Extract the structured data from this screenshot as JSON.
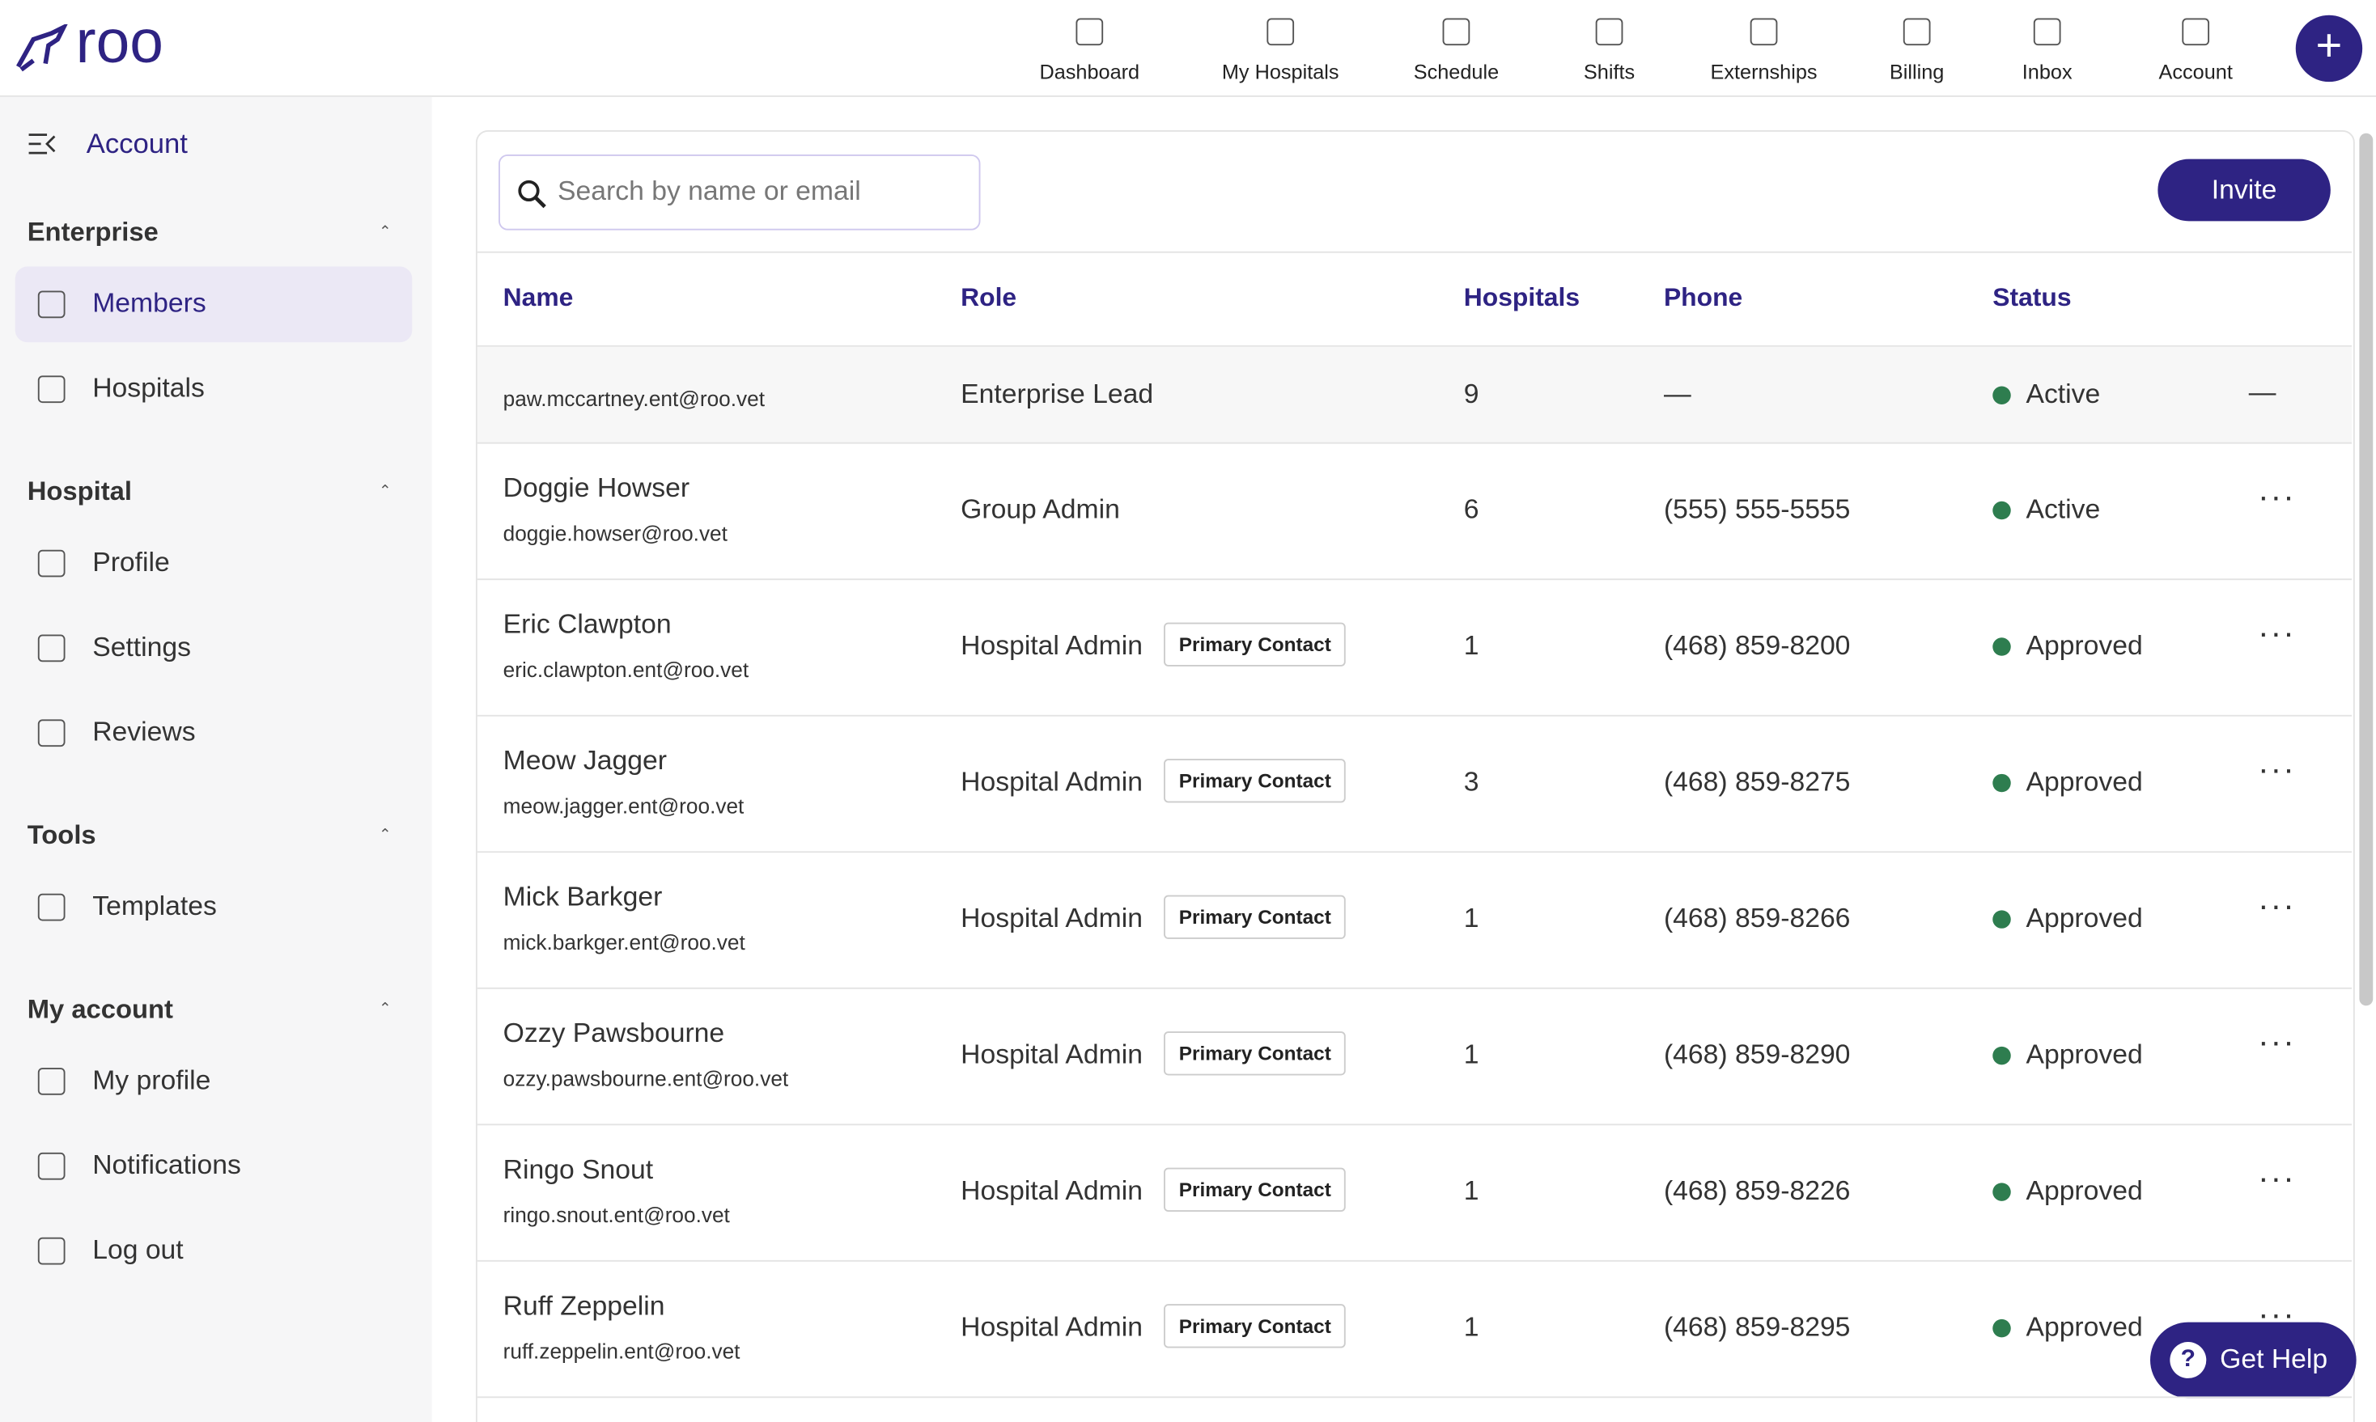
{
  "header": {
    "logo": "roo",
    "nav": [
      "Dashboard",
      "My Hospitals",
      "Schedule",
      "Shifts",
      "Externships",
      "Billing",
      "Inbox",
      "Account"
    ]
  },
  "sidebar": {
    "title": "Account",
    "sections": [
      {
        "title": "Enterprise",
        "items": [
          "Members",
          "Hospitals"
        ]
      },
      {
        "title": "Hospital",
        "items": [
          "Profile",
          "Settings",
          "Reviews"
        ]
      },
      {
        "title": "Tools",
        "items": [
          "Templates"
        ]
      },
      {
        "title": "My account",
        "items": [
          "My profile",
          "Notifications",
          "Log out"
        ]
      }
    ]
  },
  "search_placeholder": "Search by name or email",
  "invite": "Invite",
  "table": {
    "columns": [
      "Name",
      "Role",
      "Hospitals",
      "Phone",
      "Status"
    ],
    "rows": [
      {
        "email": "paw.mccartney.ent@roo.vet",
        "role": "Enterprise Lead",
        "hospitals": "9",
        "phone": "—",
        "status": "Active",
        "action": "—"
      },
      {
        "name": "Doggie Howser",
        "email": "doggie.howser@roo.vet",
        "role": "Group Admin",
        "hospitals": "6",
        "phone": "(555) 555-5555",
        "status": "Active"
      },
      {
        "name": "Eric Clawpton",
        "email": "eric.clawpton.ent@roo.vet",
        "role": "Hospital Admin",
        "badge": "Primary Contact",
        "hospitals": "1",
        "phone": "(468) 859-8200",
        "status": "Approved"
      },
      {
        "name": "Meow Jagger",
        "email": "meow.jagger.ent@roo.vet",
        "role": "Hospital Admin",
        "badge": "Primary Contact",
        "hospitals": "3",
        "phone": "(468) 859-8275",
        "status": "Approved"
      },
      {
        "name": "Mick Barkger",
        "email": "mick.barkger.ent@roo.vet",
        "role": "Hospital Admin",
        "badge": "Primary Contact",
        "hospitals": "1",
        "phone": "(468) 859-8266",
        "status": "Approved"
      },
      {
        "name": "Ozzy Pawsbourne",
        "email": "ozzy.pawsbourne.ent@roo.vet",
        "role": "Hospital Admin",
        "badge": "Primary Contact",
        "hospitals": "1",
        "phone": "(468) 859-8290",
        "status": "Approved"
      },
      {
        "name": "Ringo Snout",
        "email": "ringo.snout.ent@roo.vet",
        "role": "Hospital Admin",
        "badge": "Primary Contact",
        "hospitals": "1",
        "phone": "(468) 859-8226",
        "status": "Approved"
      },
      {
        "name": "Ruff Zeppelin",
        "email": "ruff.zeppelin.ent@roo.vet",
        "role": "Hospital Admin",
        "badge": "Primary Contact",
        "hospitals": "1",
        "phone": "(468) 859-8295",
        "status": "Approved"
      }
    ]
  },
  "help": "Get Help"
}
